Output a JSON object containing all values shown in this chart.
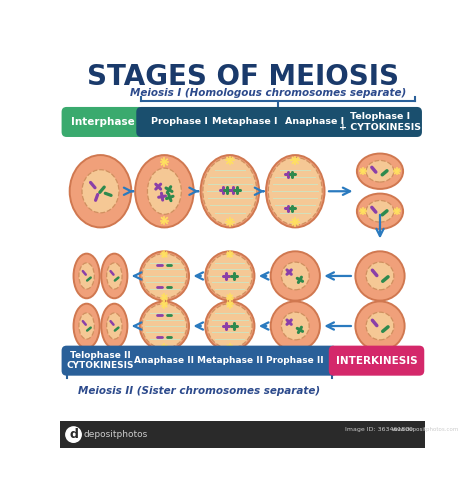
{
  "title": "STAGES OF MEIOSIS",
  "title_color": "#1a3a6b",
  "title_fontsize": 20,
  "subtitle1": "Meiosis I (Homologous chromosomes separate)",
  "subtitle2": "Meiosis II (Sister chromosomes separate)",
  "subtitle_color": "#2c4a8c",
  "subtitle_fontsize": 7.5,
  "bg_color": "#ffffff",
  "header_row1": [
    "Interphase",
    "Prophase I",
    "Metaphase I",
    "Anaphase I",
    "Telophase I\n+ CYTOKINESIS"
  ],
  "header_row2": [
    "Telophase II\nCYTOKINESIS",
    "Anaphase II",
    "Metaphase II",
    "Prophase II",
    "INTERKINESIS"
  ],
  "header1_colors": [
    "#3aaa6e",
    "#1a4f6e",
    "#1a4f6e",
    "#1a4f6e",
    "#1a4f6e"
  ],
  "header2_colors": [
    "#2a6099",
    "#2a6099",
    "#2a6099",
    "#2a6099",
    "#d4286a"
  ],
  "header_text_color": "#ffffff",
  "arrow_color": "#2a7abf",
  "brace_color": "#2a6099",
  "cell_outer": "#f0a07a",
  "cell_border": "#d07850",
  "nucleus_fill": "#f5c895",
  "nucleus_border": "#d09060",
  "chr_purple": "#8b3fa8",
  "chr_green": "#2d8a4e",
  "spindle_color": "#d0e8d0",
  "aster_color": "#ffe060",
  "footer_bg": "#2a2a2a",
  "footer_text": "#cccccc"
}
